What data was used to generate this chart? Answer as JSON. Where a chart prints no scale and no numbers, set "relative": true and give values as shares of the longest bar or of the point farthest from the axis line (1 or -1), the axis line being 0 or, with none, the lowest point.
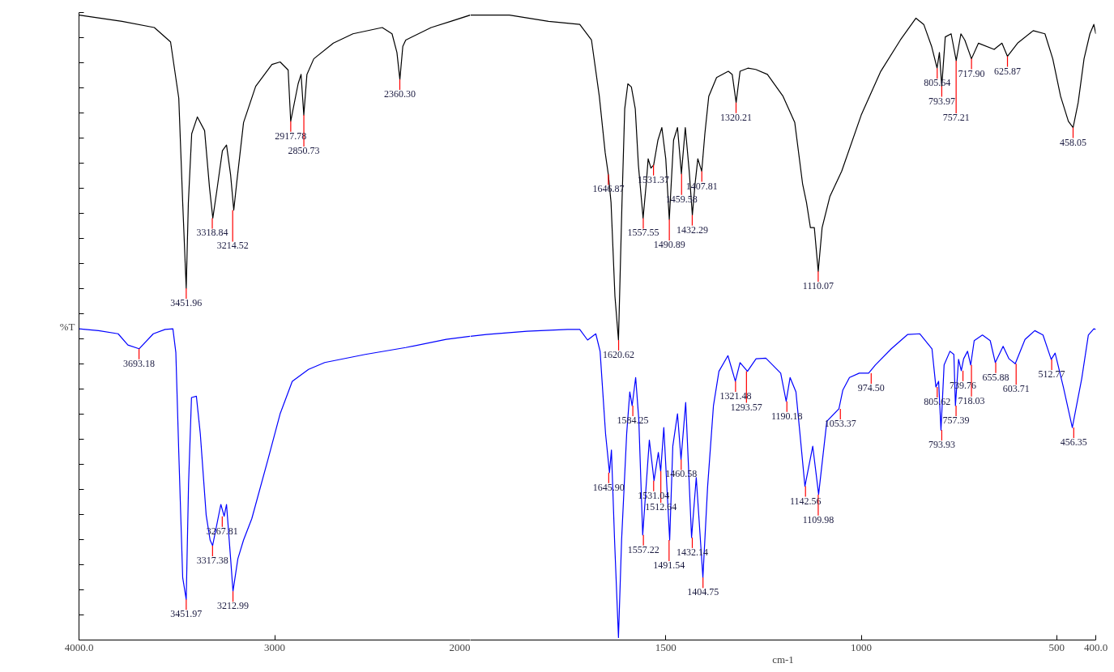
{
  "chart_data": [
    {
      "type": "line",
      "relative": true,
      "ylabel": "%T",
      "xlim": [
        4000,
        2000
      ],
      "xticks": [
        {
          "value": 4000,
          "label": "4000.0"
        },
        3000,
        2000
      ],
      "grid": false,
      "marker": "none",
      "line_style": "solid",
      "series": [
        {
          "color": "#000000",
          "x": [
            4000,
            3780,
            3615,
            3532,
            3490,
            3470,
            3452,
            3441,
            3424,
            3395,
            3358,
            3333,
            3316,
            3296,
            3267,
            3246,
            3225,
            3209,
            3192,
            3159,
            3097,
            3014,
            2972,
            2931,
            2918,
            2880,
            2865,
            2851,
            2835,
            2800,
            2700,
            2600,
            2450,
            2400,
            2375,
            2360,
            2345,
            2330,
            2200,
            2100,
            2000
          ],
          "values": [
            1.0,
            0.99,
            0.98,
            0.957,
            0.867,
            0.7,
            0.563,
            0.7,
            0.81,
            0.837,
            0.815,
            0.724,
            0.675,
            0.718,
            0.783,
            0.792,
            0.744,
            0.688,
            0.737,
            0.828,
            0.886,
            0.921,
            0.925,
            0.912,
            0.83,
            0.89,
            0.905,
            0.84,
            0.905,
            0.93,
            0.955,
            0.97,
            0.98,
            0.97,
            0.94,
            0.897,
            0.95,
            0.96,
            0.98,
            0.99,
            1.0
          ]
        },
        {
          "color": "#0000ff",
          "x": [
            4000,
            3900,
            3800,
            3750,
            3693,
            3620,
            3560,
            3520,
            3505,
            3490,
            3470,
            3452,
            3440,
            3425,
            3400,
            3380,
            3350,
            3330,
            3317,
            3275,
            3258,
            3246,
            3225,
            3213,
            3188,
            3159,
            3117,
            3034,
            2972,
            2910,
            2827,
            2744,
            2537,
            2330,
            2123,
            2000
          ],
          "values": [
            0.498,
            0.495,
            0.49,
            0.472,
            0.466,
            0.49,
            0.497,
            0.498,
            0.46,
            0.3,
            0.1,
            0.065,
            0.25,
            0.388,
            0.39,
            0.33,
            0.2,
            0.16,
            0.151,
            0.217,
            0.198,
            0.217,
            0.13,
            0.078,
            0.13,
            0.16,
            0.194,
            0.289,
            0.362,
            0.414,
            0.433,
            0.444,
            0.457,
            0.468,
            0.481,
            0.486
          ]
        }
      ],
      "annotations": [
        {
          "text": "3451.96",
          "x": 3451.96,
          "y": 0.563
        },
        {
          "text": "3318.84",
          "x": 3318.84,
          "y": 0.675
        },
        {
          "text": "3214.52",
          "x": 3214.52,
          "y": 0.688
        },
        {
          "text": "2917.78",
          "x": 2917.78,
          "y": 0.83
        },
        {
          "text": "2850.73",
          "x": 2850.73,
          "y": 0.84
        },
        {
          "text": "2360.30",
          "x": 2360.3,
          "y": 0.897
        },
        {
          "text": "3693.18",
          "x": 3693.18,
          "y": 0.466
        },
        {
          "text": "3451.97",
          "x": 3451.97,
          "y": 0.065
        },
        {
          "text": "3317.38",
          "x": 3317.38,
          "y": 0.151
        },
        {
          "text": "3267.81",
          "x": 3267.81,
          "y": 0.198
        },
        {
          "text": "3212.99",
          "x": 3212.99,
          "y": 0.078
        }
      ]
    },
    {
      "type": "line",
      "relative": true,
      "xlabel": "cm-1",
      "xlim": [
        2000,
        400
      ],
      "xticks": [
        1500,
        1000,
        500,
        {
          "value": 400,
          "label": "400.0"
        }
      ],
      "grid": false,
      "marker": "none",
      "line_style": "solid",
      "series": [
        {
          "color": "#000000",
          "x": [
            2000,
            1900,
            1800,
            1720,
            1690,
            1670,
            1655,
            1647,
            1640,
            1630,
            1621,
            1612,
            1605,
            1597,
            1588,
            1578,
            1570,
            1558,
            1550,
            1545,
            1538,
            1531,
            1520,
            1510,
            1500,
            1491,
            1480,
            1470,
            1460,
            1450,
            1440,
            1432,
            1425,
            1418,
            1408,
            1400,
            1390,
            1370,
            1340,
            1330,
            1320,
            1310,
            1290,
            1270,
            1240,
            1200,
            1170,
            1150,
            1140,
            1130,
            1120,
            1110,
            1100,
            1080,
            1050,
            1000,
            950,
            900,
            860,
            840,
            820,
            806,
            800,
            794,
            785,
            770,
            757,
            745,
            735,
            718,
            700,
            660,
            640,
            626,
            600,
            560,
            530,
            510,
            490,
            470,
            458,
            445,
            430,
            415,
            405,
            400
          ],
          "values": [
            1.0,
            1.0,
            0.99,
            0.985,
            0.96,
            0.87,
            0.78,
            0.745,
            0.7,
            0.55,
            0.48,
            0.7,
            0.85,
            0.89,
            0.885,
            0.85,
            0.76,
            0.675,
            0.73,
            0.77,
            0.755,
            0.76,
            0.8,
            0.82,
            0.77,
            0.673,
            0.8,
            0.82,
            0.746,
            0.82,
            0.75,
            0.68,
            0.73,
            0.77,
            0.75,
            0.81,
            0.87,
            0.9,
            0.91,
            0.905,
            0.86,
            0.91,
            0.915,
            0.913,
            0.905,
            0.87,
            0.828,
            0.73,
            0.7,
            0.66,
            0.66,
            0.59,
            0.66,
            0.71,
            0.75,
            0.84,
            0.91,
            0.96,
            0.995,
            0.985,
            0.95,
            0.915,
            0.94,
            0.886,
            0.965,
            0.97,
            0.927,
            0.97,
            0.96,
            0.93,
            0.955,
            0.945,
            0.955,
            0.934,
            0.955,
            0.975,
            0.97,
            0.93,
            0.87,
            0.83,
            0.82,
            0.86,
            0.93,
            0.97,
            0.985,
            0.97
          ]
        },
        {
          "color": "#0000ff",
          "x": [
            2000,
            1959,
            1855,
            1751,
            1720,
            1700,
            1679,
            1668,
            1654,
            1644,
            1639,
            1631,
            1621,
            1613,
            1600,
            1592,
            1586,
            1577,
            1569,
            1559,
            1542,
            1530,
            1519,
            1513,
            1505,
            1490,
            1482,
            1470,
            1461,
            1449,
            1434,
            1422,
            1405,
            1393,
            1378,
            1364,
            1341,
            1322,
            1310,
            1291,
            1269,
            1244,
            1206,
            1192,
            1182,
            1167,
            1157,
            1144,
            1124,
            1109,
            1088,
            1057,
            1047,
            1030,
            1005,
            981,
            964,
            923,
            881,
            850,
            819,
            809,
            802,
            796,
            788,
            773,
            763,
            759,
            751,
            744,
            738,
            728,
            720,
            711,
            690,
            670,
            657,
            637,
            622,
            606,
            581,
            556,
            535,
            514,
            504,
            483,
            460,
            436,
            419,
            405,
            400
          ],
          "values": [
            0.486,
            0.489,
            0.494,
            0.497,
            0.497,
            0.48,
            0.49,
            0.462,
            0.33,
            0.268,
            0.304,
            0.16,
            0.004,
            0.16,
            0.33,
            0.397,
            0.375,
            0.42,
            0.353,
            0.168,
            0.32,
            0.255,
            0.3,
            0.27,
            0.34,
            0.16,
            0.31,
            0.362,
            0.289,
            0.38,
            0.164,
            0.26,
            0.1,
            0.245,
            0.375,
            0.43,
            0.455,
            0.414,
            0.444,
            0.43,
            0.45,
            0.451,
            0.427,
            0.382,
            0.42,
            0.397,
            0.332,
            0.246,
            0.31,
            0.233,
            0.35,
            0.37,
            0.4,
            0.42,
            0.427,
            0.427,
            0.44,
            0.466,
            0.489,
            0.49,
            0.466,
            0.405,
            0.414,
            0.336,
            0.44,
            0.462,
            0.457,
            0.375,
            0.449,
            0.431,
            0.45,
            0.462,
            0.44,
            0.479,
            0.488,
            0.479,
            0.444,
            0.47,
            0.45,
            0.442,
            0.481,
            0.495,
            0.488,
            0.449,
            0.459,
            0.405,
            0.34,
            0.418,
            0.488,
            0.498,
            0.497
          ]
        }
      ],
      "annotations": [
        {
          "text": "1646.87",
          "x": 1646.87,
          "y": 0.745
        },
        {
          "text": "1620.62",
          "x": 1620.62,
          "y": 0.48
        },
        {
          "text": "1557.55",
          "x": 1557.55,
          "y": 0.675
        },
        {
          "text": "1531.37",
          "x": 1531.37,
          "y": 0.76
        },
        {
          "text": "1490.89",
          "x": 1490.89,
          "y": 0.673
        },
        {
          "text": "1459.58",
          "x": 1459.58,
          "y": 0.746
        },
        {
          "text": "1432.29",
          "x": 1432.29,
          "y": 0.68
        },
        {
          "text": "1407.81",
          "x": 1407.81,
          "y": 0.75
        },
        {
          "text": "1320.21",
          "x": 1320.21,
          "y": 0.86
        },
        {
          "text": "1110.07",
          "x": 1110.07,
          "y": 0.59
        },
        {
          "text": "805.64",
          "x": 805.64,
          "y": 0.915
        },
        {
          "text": "793.97",
          "x": 793.97,
          "y": 0.886
        },
        {
          "text": "757.21",
          "x": 757.21,
          "y": 0.927
        },
        {
          "text": "717.90",
          "x": 717.9,
          "y": 0.93
        },
        {
          "text": "625.87",
          "x": 625.87,
          "y": 0.934
        },
        {
          "text": "458.05",
          "x": 458.05,
          "y": 0.82
        },
        {
          "text": "1645.90",
          "x": 1645.9,
          "y": 0.268
        },
        {
          "text": "1584.25",
          "x": 1584.25,
          "y": 0.375
        },
        {
          "text": "1557.22",
          "x": 1557.22,
          "y": 0.168
        },
        {
          "text": "1531.04",
          "x": 1531.04,
          "y": 0.255
        },
        {
          "text": "1512.64",
          "x": 1512.64,
          "y": 0.27
        },
        {
          "text": "1491.54",
          "x": 1491.54,
          "y": 0.16
        },
        {
          "text": "1460.58",
          "x": 1460.58,
          "y": 0.289
        },
        {
          "text": "1432.14",
          "x": 1432.14,
          "y": 0.164
        },
        {
          "text": "1404.75",
          "x": 1404.75,
          "y": 0.1
        },
        {
          "text": "1321.48",
          "x": 1321.48,
          "y": 0.414
        },
        {
          "text": "1293.57",
          "x": 1293.57,
          "y": 0.43
        },
        {
          "text": "1190.18",
          "x": 1190.18,
          "y": 0.382
        },
        {
          "text": "1142.56",
          "x": 1142.56,
          "y": 0.246
        },
        {
          "text": "1109.98",
          "x": 1109.98,
          "y": 0.233
        },
        {
          "text": "1053.37",
          "x": 1053.37,
          "y": 0.37
        },
        {
          "text": "974.50",
          "x": 974.5,
          "y": 0.427
        },
        {
          "text": "805.62",
          "x": 805.62,
          "y": 0.405
        },
        {
          "text": "793.93",
          "x": 793.93,
          "y": 0.336
        },
        {
          "text": "757.39",
          "x": 757.39,
          "y": 0.375
        },
        {
          "text": "739.76",
          "x": 739.76,
          "y": 0.431
        },
        {
          "text": "718.03",
          "x": 718.03,
          "y": 0.44
        },
        {
          "text": "655.88",
          "x": 655.88,
          "y": 0.444
        },
        {
          "text": "603.71",
          "x": 603.71,
          "y": 0.442
        },
        {
          "text": "512.77",
          "x": 512.77,
          "y": 0.449
        },
        {
          "text": "456.35",
          "x": 456.35,
          "y": 0.34
        }
      ]
    }
  ]
}
